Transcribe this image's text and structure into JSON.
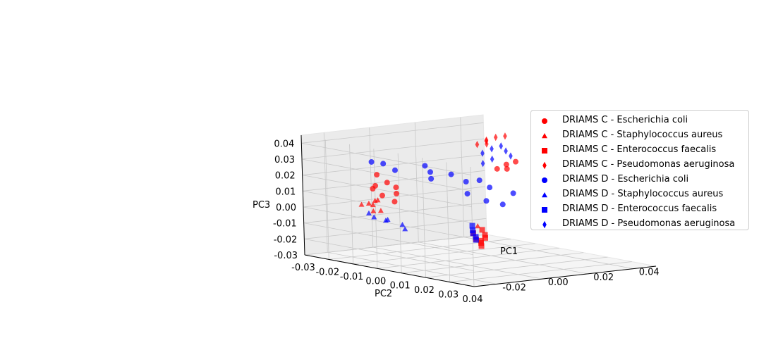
{
  "chart_data": {
    "type": "scatter",
    "projection": "3d",
    "title": "",
    "xlabel": "PC1",
    "ylabel": "PC2",
    "zlabel": "PC3",
    "xlim": [
      -0.03,
      0.05
    ],
    "ylim": [
      -0.03,
      0.04
    ],
    "zlim": [
      -0.03,
      0.045
    ],
    "x_ticks": [
      "-0.02",
      "0.00",
      "0.02",
      "0.04"
    ],
    "y_ticks": [
      "-0.03",
      "-0.02",
      "-0.01",
      "0.00",
      "0.01",
      "0.02",
      "0.03",
      "0.04"
    ],
    "z_ticks": [
      "-0.03",
      "-0.02",
      "-0.01",
      "0.00",
      "0.01",
      "0.02",
      "0.03",
      "0.04"
    ],
    "grid": true,
    "legend_position": "right",
    "colors": {
      "C": "#ff0000",
      "D": "#0000ff"
    },
    "series": [
      {
        "name": "DRIAMS C - Escherichia coli",
        "color": "#ff0000",
        "marker": "circle",
        "points": [
          [
            -0.012,
            -0.018,
            0.012
          ],
          [
            -0.01,
            -0.016,
            0.008
          ],
          [
            -0.014,
            -0.015,
            0.015
          ],
          [
            -0.008,
            -0.012,
            0.01
          ],
          [
            -0.011,
            -0.01,
            0.006
          ],
          [
            -0.006,
            -0.014,
            0.013
          ],
          [
            -0.013,
            -0.011,
            0.018
          ],
          [
            -0.009,
            -0.019,
            0.02
          ],
          [
            0.03,
            -0.002,
            0.025
          ],
          [
            0.028,
            -0.004,
            0.022
          ],
          [
            0.032,
            0.0,
            0.027
          ],
          [
            0.026,
            0.002,
            0.024
          ]
        ]
      },
      {
        "name": "DRIAMS C - Staphylococcus aureus",
        "color": "#ff0000",
        "marker": "triangle",
        "points": [
          [
            -0.015,
            -0.02,
            0.002
          ],
          [
            -0.012,
            -0.018,
            -0.002
          ],
          [
            -0.016,
            -0.016,
            0.004
          ],
          [
            -0.01,
            -0.02,
            0.001
          ],
          [
            -0.014,
            -0.013,
            0.0
          ],
          [
            -0.011,
            -0.017,
            0.005
          ],
          [
            -0.008,
            -0.021,
            0.003
          ],
          [
            0.004,
            0.01,
            -0.006
          ]
        ]
      },
      {
        "name": "DRIAMS C - Enterococcus faecalis",
        "color": "#ff0000",
        "marker": "square",
        "points": [
          [
            -0.018,
            0.03,
            -0.005
          ],
          [
            -0.016,
            0.032,
            -0.004
          ],
          [
            -0.02,
            0.034,
            -0.006
          ],
          [
            -0.014,
            0.03,
            -0.003
          ],
          [
            -0.022,
            0.036,
            -0.007
          ],
          [
            -0.017,
            0.028,
            -0.002
          ],
          [
            -0.019,
            0.033,
            -0.005
          ],
          [
            -0.012,
            0.027,
            -0.001
          ]
        ]
      },
      {
        "name": "DRIAMS C - Pseudomonas aeruginosa",
        "color": "#ff0000",
        "marker": "diamond",
        "points": [
          [
            0.03,
            -0.01,
            0.038
          ],
          [
            0.032,
            -0.008,
            0.04
          ],
          [
            0.028,
            -0.012,
            0.035
          ],
          [
            0.034,
            -0.006,
            0.041
          ],
          [
            0.029,
            -0.009,
            0.036
          ],
          [
            0.031,
            -0.011,
            0.037
          ]
        ]
      },
      {
        "name": "DRIAMS D - Escherichia coli",
        "color": "#0000ff",
        "marker": "circle",
        "points": [
          [
            0.005,
            -0.01,
            0.022
          ],
          [
            0.0,
            -0.005,
            0.02
          ],
          [
            0.01,
            0.0,
            0.018
          ],
          [
            0.008,
            -0.015,
            0.024
          ],
          [
            -0.002,
            -0.018,
            0.022
          ],
          [
            0.015,
            0.005,
            0.015
          ],
          [
            0.012,
            -0.008,
            0.02
          ],
          [
            0.002,
            0.008,
            0.014
          ],
          [
            -0.005,
            -0.02,
            0.026
          ],
          [
            0.018,
            -0.002,
            0.017
          ],
          [
            0.006,
            0.012,
            0.01
          ],
          [
            -0.008,
            -0.022,
            0.027
          ],
          [
            0.02,
            0.01,
            0.012
          ],
          [
            0.01,
            0.015,
            0.008
          ]
        ]
      },
      {
        "name": "DRIAMS D - Staphylococcus aureus",
        "color": "#0000ff",
        "marker": "triangle",
        "points": [
          [
            -0.013,
            -0.012,
            -0.006
          ],
          [
            -0.01,
            -0.008,
            -0.008
          ],
          [
            -0.016,
            -0.014,
            -0.004
          ],
          [
            -0.011,
            -0.006,
            -0.01
          ],
          [
            -0.014,
            -0.018,
            -0.003
          ],
          [
            -0.009,
            -0.015,
            -0.007
          ]
        ]
      },
      {
        "name": "DRIAMS D - Enterococcus faecalis",
        "color": "#0000ff",
        "marker": "square",
        "points": [
          [
            -0.015,
            0.026,
            -0.003
          ],
          [
            -0.013,
            0.024,
            -0.002
          ],
          [
            -0.017,
            0.029,
            -0.004
          ],
          [
            -0.011,
            0.022,
            0.0
          ],
          [
            -0.019,
            0.031,
            -0.005
          ]
        ]
      },
      {
        "name": "DRIAMS D - Pseudomonas aeruginosa",
        "color": "#0000ff",
        "marker": "diamond",
        "points": [
          [
            0.028,
            -0.006,
            0.034
          ],
          [
            0.03,
            -0.004,
            0.036
          ],
          [
            0.026,
            -0.008,
            0.031
          ],
          [
            0.032,
            -0.002,
            0.03
          ],
          [
            0.027,
            -0.005,
            0.028
          ],
          [
            0.025,
            -0.007,
            0.025
          ],
          [
            0.031,
            -0.003,
            0.033
          ]
        ]
      }
    ]
  }
}
